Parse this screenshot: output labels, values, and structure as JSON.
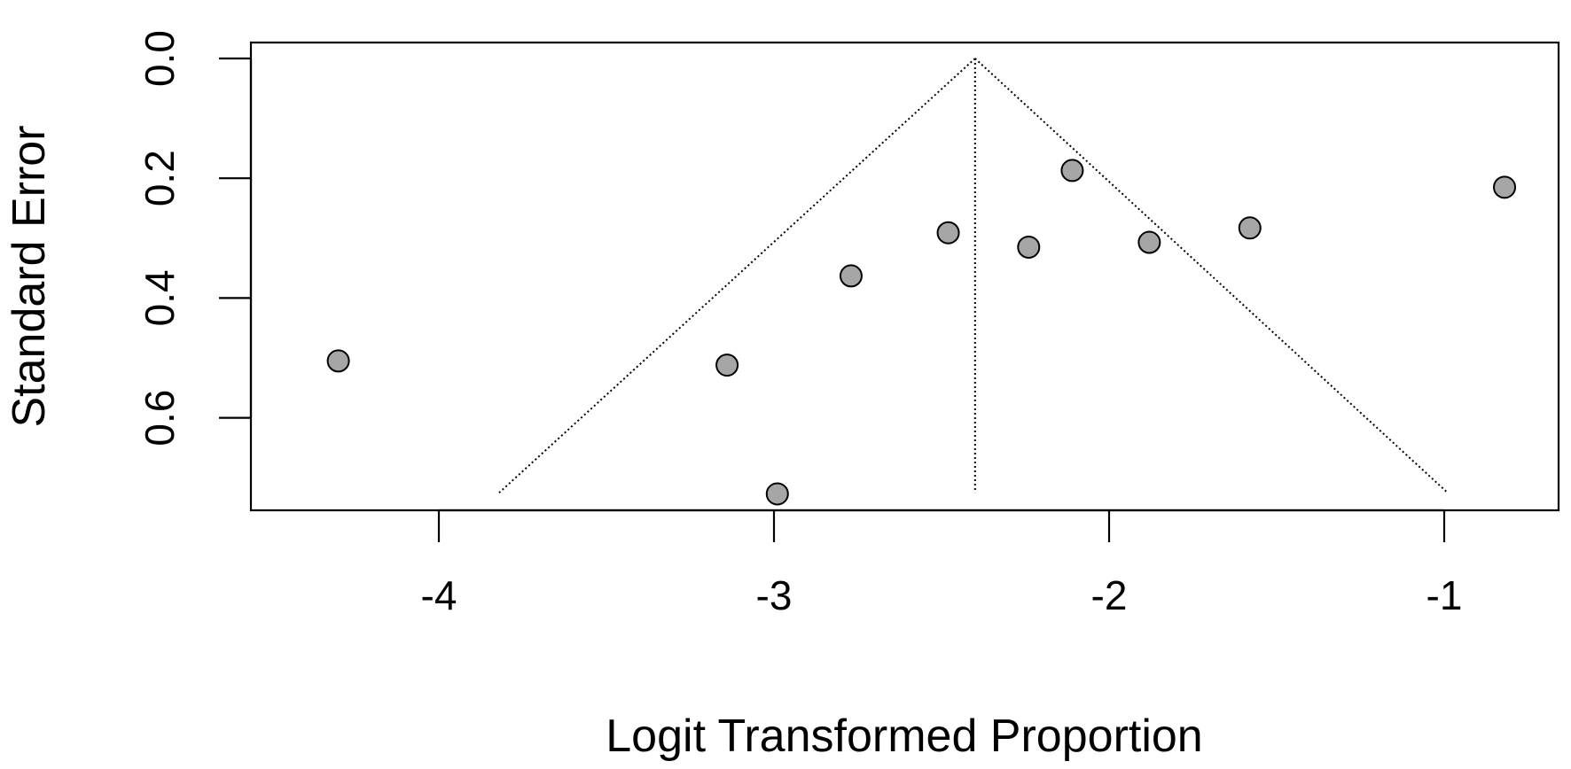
{
  "chart_data": {
    "type": "scatter",
    "title": "",
    "xlabel": "Logit Transformed Proportion",
    "ylabel": "Standard Error",
    "xlim": [
      -4.55,
      -0.65
    ],
    "ylim": [
      0.0,
      0.75
    ],
    "y_reversed": true,
    "x_ticks": [
      -4,
      -3,
      -2,
      -1
    ],
    "x_tick_labels": [
      "-4",
      "-3",
      "-2",
      "-1"
    ],
    "y_ticks": [
      0.0,
      0.2,
      0.4,
      0.6
    ],
    "y_tick_labels": [
      "0.0",
      "0.2",
      "0.4",
      "0.6"
    ],
    "grid": false,
    "point_color": "#a6a6a6",
    "funnel": {
      "center": -2.4,
      "se_max": 0.725,
      "left_at_max": -3.82,
      "right_at_max": -0.99
    },
    "points": [
      {
        "x": -4.3,
        "y": 0.505
      },
      {
        "x": -3.14,
        "y": 0.512
      },
      {
        "x": -2.99,
        "y": 0.727
      },
      {
        "x": -2.77,
        "y": 0.363
      },
      {
        "x": -2.48,
        "y": 0.291
      },
      {
        "x": -2.24,
        "y": 0.315
      },
      {
        "x": -2.11,
        "y": 0.187
      },
      {
        "x": -1.88,
        "y": 0.307
      },
      {
        "x": -1.58,
        "y": 0.283
      },
      {
        "x": -0.82,
        "y": 0.215
      }
    ]
  }
}
